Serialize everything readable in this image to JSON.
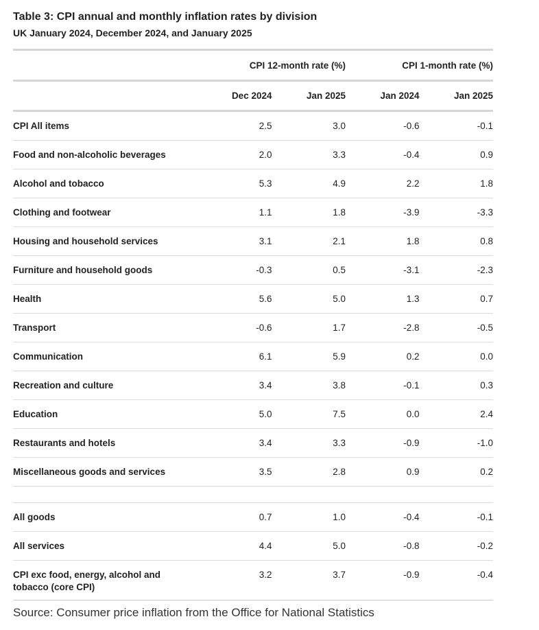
{
  "title": "Table 3: CPI annual and monthly inflation rates by division",
  "subtitle": "UK January 2024, December 2024, and January 2025",
  "groups": [
    "CPI 12-month rate (%)",
    "CPI 1-month rate (%)"
  ],
  "columns": [
    "Dec 2024",
    "Jan 2025",
    "Jan 2024",
    "Jan 2025"
  ],
  "rows": [
    {
      "name": "CPI All items",
      "v": [
        "2.5",
        "3.0",
        "-0.6",
        "-0.1"
      ]
    },
    {
      "name": "Food and non-alcoholic beverages",
      "v": [
        "2.0",
        "3.3",
        "-0.4",
        "0.9"
      ]
    },
    {
      "name": "Alcohol and tobacco",
      "v": [
        "5.3",
        "4.9",
        "2.2",
        "1.8"
      ]
    },
    {
      "name": "Clothing and footwear",
      "v": [
        "1.1",
        "1.8",
        "-3.9",
        "-3.3"
      ]
    },
    {
      "name": "Housing and household services",
      "v": [
        "3.1",
        "2.1",
        "1.8",
        "0.8"
      ]
    },
    {
      "name": "Furniture and household goods",
      "v": [
        "-0.3",
        "0.5",
        "-3.1",
        "-2.3"
      ]
    },
    {
      "name": "Health",
      "v": [
        "5.6",
        "5.0",
        "1.3",
        "0.7"
      ]
    },
    {
      "name": "Transport",
      "v": [
        "-0.6",
        "1.7",
        "-2.8",
        "-0.5"
      ]
    },
    {
      "name": "Communication",
      "v": [
        "6.1",
        "5.9",
        "0.2",
        "0.0"
      ]
    },
    {
      "name": "Recreation and culture",
      "v": [
        "3.4",
        "3.8",
        "-0.1",
        "0.3"
      ]
    },
    {
      "name": "Education",
      "v": [
        "5.0",
        "7.5",
        "0.0",
        "2.4"
      ]
    },
    {
      "name": "Restaurants and hotels",
      "v": [
        "3.4",
        "3.3",
        "-0.9",
        "-1.0"
      ]
    },
    {
      "name": "Miscellaneous goods and services",
      "v": [
        "3.5",
        "2.8",
        "0.9",
        "0.2"
      ]
    }
  ],
  "summary_rows": [
    {
      "name": "All goods",
      "v": [
        "0.7",
        "1.0",
        "-0.4",
        "-0.1"
      ]
    },
    {
      "name": "All services",
      "v": [
        "4.4",
        "5.0",
        "-0.8",
        "-0.2"
      ]
    },
    {
      "name": "CPI exc food, energy, alcohol and tobacco (core CPI)",
      "v": [
        "3.2",
        "3.7",
        "-0.9",
        "-0.4"
      ]
    }
  ],
  "source": "Source: Consumer price inflation from the Office for National Statistics"
}
